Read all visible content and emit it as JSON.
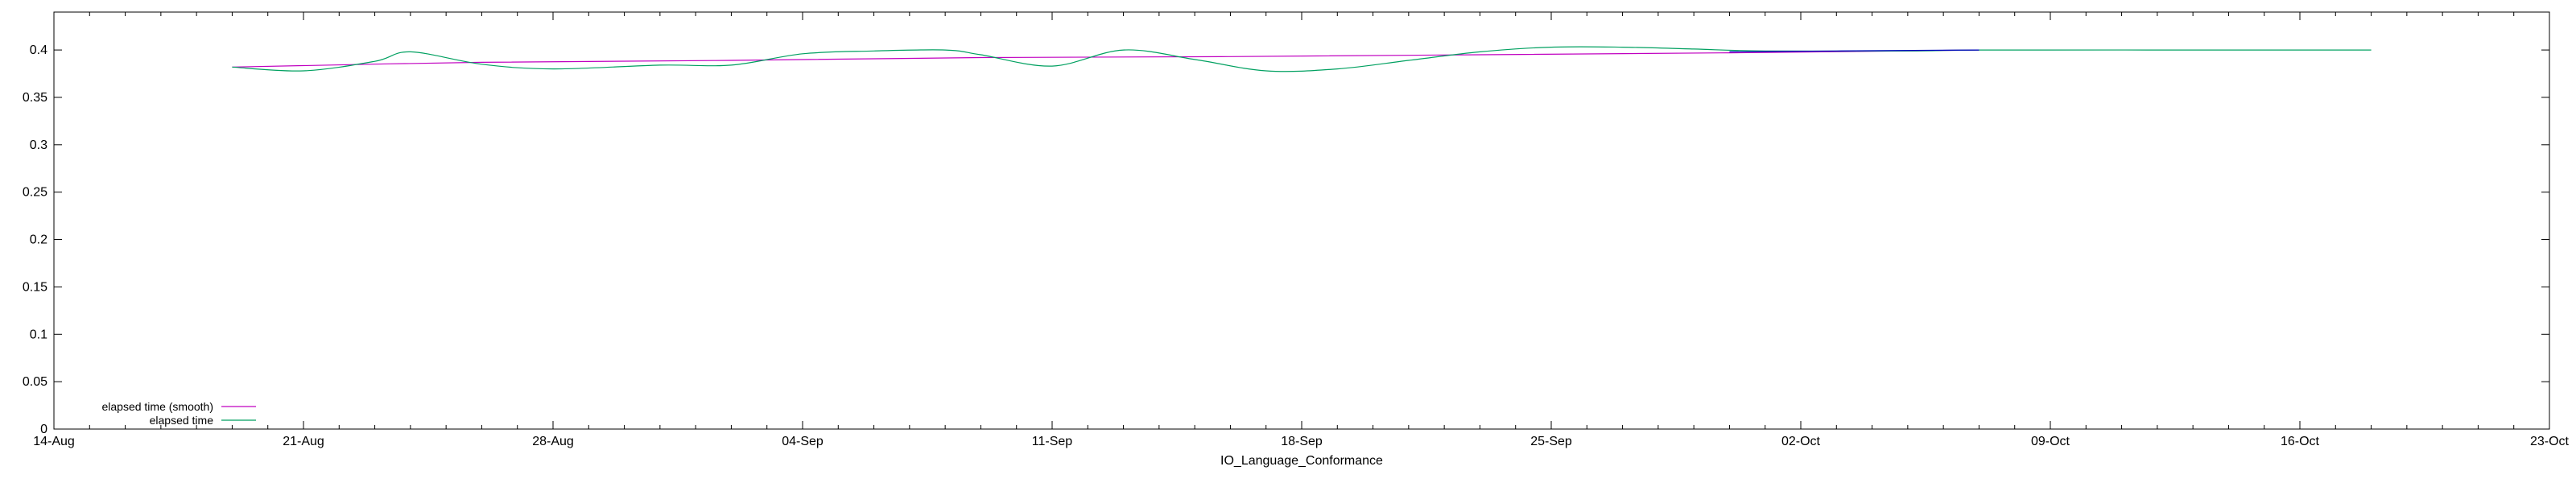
{
  "chart_data": {
    "type": "line",
    "title": "",
    "xlabel": "IO_Language_Conformance",
    "ylabel": "",
    "x_ticks": [
      "14-Aug",
      "21-Aug",
      "28-Aug",
      "04-Sep",
      "11-Sep",
      "18-Sep",
      "25-Sep",
      "02-Oct",
      "09-Oct",
      "16-Oct",
      "23-Oct"
    ],
    "y_ticks": [
      "0",
      "0.05",
      "0.1",
      "0.15",
      "0.2",
      "0.25",
      "0.3",
      "0.35",
      "0.4"
    ],
    "ylim": [
      0,
      0.44
    ],
    "grid": false,
    "legend_position": "bottom-left",
    "series": [
      {
        "name": "elapsed time (smooth)",
        "color": "#c000c0",
        "x": [
          "2023-08-19",
          "2023-08-26",
          "2023-09-02",
          "2023-09-09",
          "2023-09-16",
          "2023-09-23",
          "2023-09-30",
          "2023-10-07"
        ],
        "y": [
          0.382,
          0.387,
          0.389,
          0.392,
          0.393,
          0.395,
          0.397,
          0.4
        ]
      },
      {
        "name": "elapsed time",
        "color": "#00a060",
        "x": [
          "2023-08-19",
          "2023-08-21",
          "2023-08-23",
          "2023-08-24",
          "2023-08-26",
          "2023-08-28",
          "2023-08-31",
          "2023-09-02",
          "2023-09-04",
          "2023-09-06",
          "2023-09-08",
          "2023-09-09",
          "2023-09-11",
          "2023-09-13",
          "2023-09-15",
          "2023-09-17",
          "2023-09-19",
          "2023-09-21",
          "2023-09-23",
          "2023-09-25",
          "2023-09-27",
          "2023-09-29",
          "2023-10-01",
          "2023-10-05",
          "2023-10-07",
          "2023-10-12",
          "2023-10-18"
        ],
        "y": [
          0.382,
          0.378,
          0.388,
          0.398,
          0.385,
          0.38,
          0.384,
          0.384,
          0.396,
          0.399,
          0.4,
          0.395,
          0.383,
          0.4,
          0.39,
          0.378,
          0.38,
          0.389,
          0.398,
          0.403,
          0.403,
          0.401,
          0.399,
          0.399,
          0.4,
          0.4,
          0.4
        ]
      },
      {
        "name": "",
        "color": "#0000c0",
        "x": [
          "2023-09-30",
          "2023-10-03",
          "2023-10-07"
        ],
        "y": [
          0.398,
          0.399,
          0.4
        ]
      }
    ]
  }
}
